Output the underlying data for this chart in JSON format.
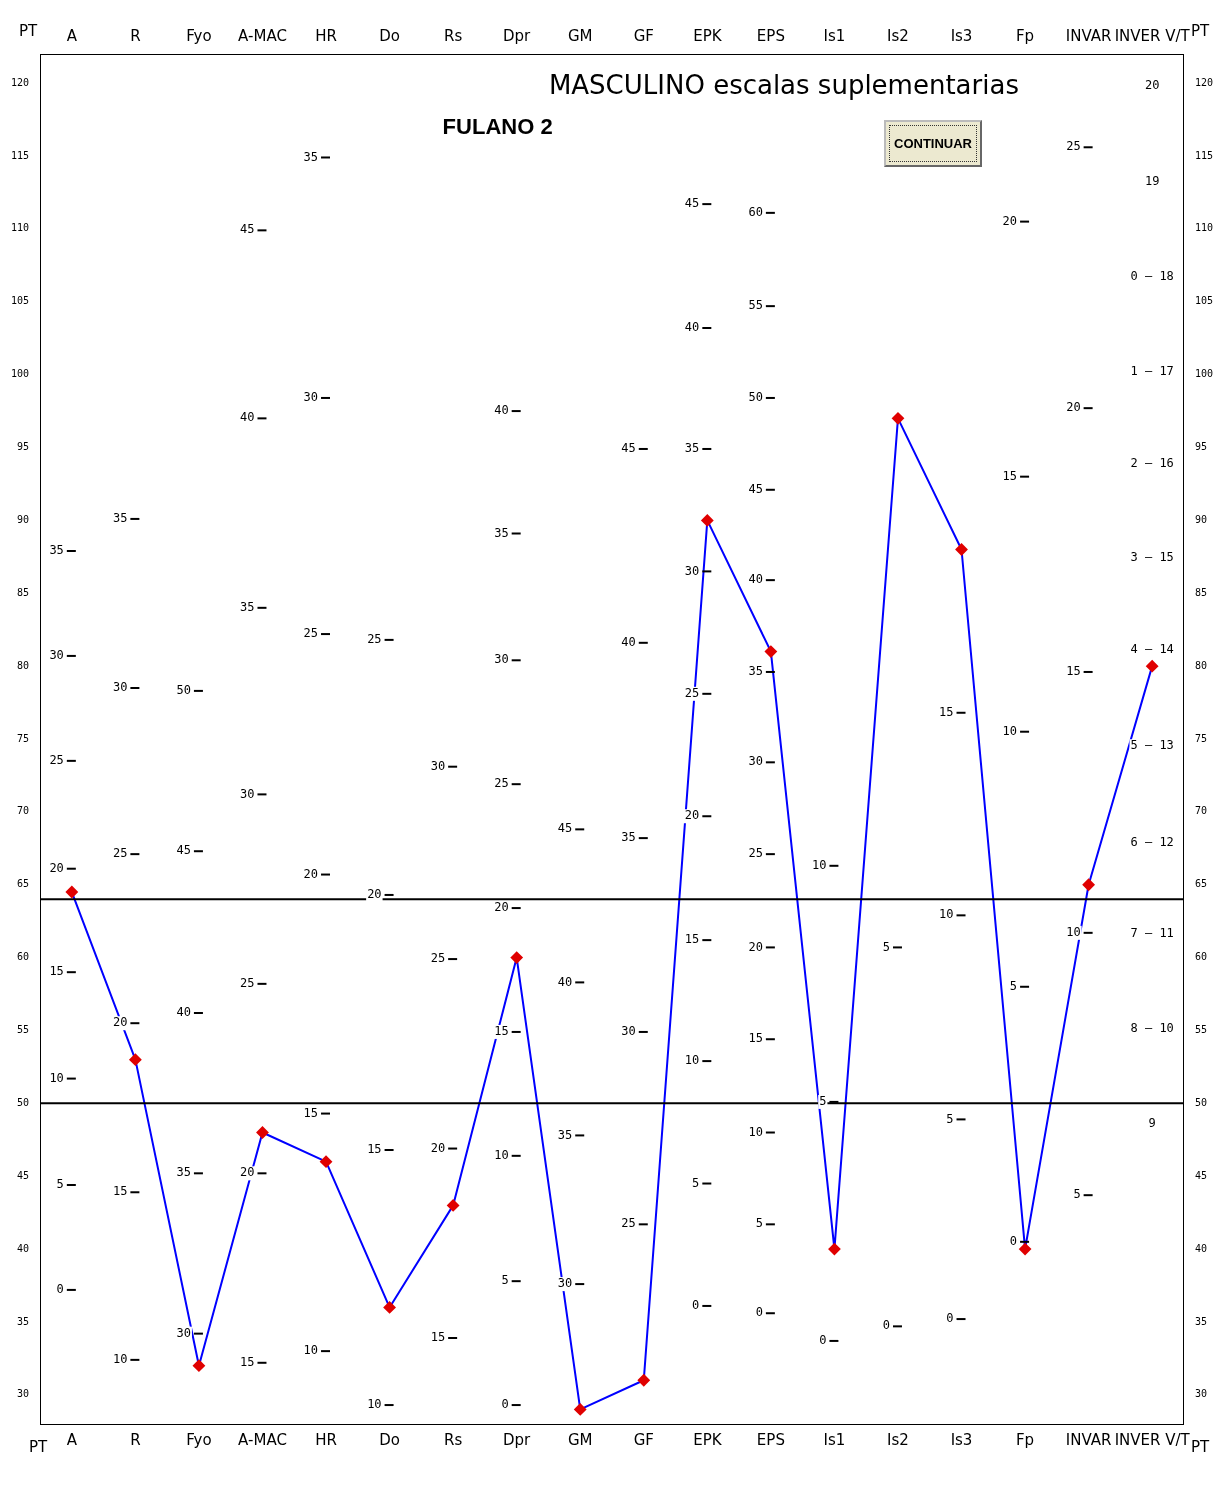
{
  "chart_data": {
    "type": "line",
    "title": "MASCULINO escalas suplementarias",
    "subtitle": "FULANO 2",
    "ylabel": "PT",
    "y2label": "PT",
    "categories": [
      "A",
      "R",
      "Fyo",
      "A-MAC",
      "HR",
      "Do",
      "Rs",
      "Dpr",
      "GM",
      "GF",
      "EPK",
      "EPS",
      "Is1",
      "Is2",
      "Is3",
      "Fp",
      "INVAR",
      "INVER V/T"
    ],
    "series": [
      {
        "color": "#0000ff",
        "colors": [
          "#e00000",
          "#e00000",
          "#e00000",
          "#e00000",
          "#e00000",
          "#e00000",
          "#e00000",
          "#e00000",
          "#e00000",
          "#e00000",
          "#e00000",
          "#e00000",
          "#e00000",
          "#e00000",
          "#e00000",
          "#e00000",
          "#e00000",
          "#e00000"
        ],
        "values": [
          64.5,
          53,
          32,
          48,
          46,
          36,
          43,
          60,
          29,
          31,
          90,
          81,
          40,
          97,
          88,
          40,
          65,
          80
        ]
      }
    ],
    "ylim": [
      28,
      122
    ],
    "yticks": [
      120,
      115,
      110,
      105,
      100,
      95,
      90,
      85,
      80,
      75,
      70,
      65,
      60,
      55,
      50,
      45,
      40,
      35,
      30
    ],
    "y2lim": [
      28,
      122
    ],
    "y2ticks": [
      120,
      115,
      110,
      105,
      100,
      95,
      90,
      85,
      80,
      75,
      70,
      65,
      60,
      55,
      50,
      45,
      40,
      35,
      30
    ],
    "marker": "diamond",
    "line_style": "solid",
    "grid": false,
    "legend": false,
    "ref_lines": [
      {
        "axis": "y",
        "value": 64,
        "color": "#000000"
      },
      {
        "axis": "y",
        "value": 50,
        "color": "#000000"
      }
    ],
    "annotations": [
      "CONTINUAR",
      "35",
      "30",
      "25",
      "20",
      "15",
      "10",
      "5",
      "0",
      "35",
      "30",
      "25",
      "20",
      "15",
      "10",
      "50",
      "45",
      "40",
      "35",
      "30",
      "45",
      "40",
      "35",
      "30",
      "25",
      "20",
      "15",
      "35",
      "30",
      "25",
      "20",
      "15",
      "10",
      "25",
      "20",
      "15",
      "10",
      "30",
      "25",
      "20",
      "15",
      "40",
      "35",
      "30",
      "25",
      "20",
      "15",
      "10",
      "5",
      "0",
      "45",
      "40",
      "35",
      "30",
      "45",
      "40",
      "35",
      "30",
      "25",
      "45",
      "40",
      "35",
      "30",
      "25",
      "20",
      "15",
      "10",
      "5",
      "0",
      "60",
      "55",
      "50",
      "45",
      "40",
      "35",
      "30",
      "25",
      "20",
      "15",
      "10",
      "5",
      "0",
      "10",
      "5",
      "0",
      "5",
      "0",
      "15",
      "10",
      "5",
      "0",
      "20",
      "15",
      "10",
      "5",
      "0",
      "25",
      "20",
      "15",
      "10",
      "5",
      "20",
      "19",
      "0 – 18",
      "1 – 17",
      "2 – 16",
      "3 – 15",
      "4 – 14",
      "5 – 13",
      "6 – 12",
      "7 – 11",
      "8 – 10",
      "9"
    ]
  }
}
